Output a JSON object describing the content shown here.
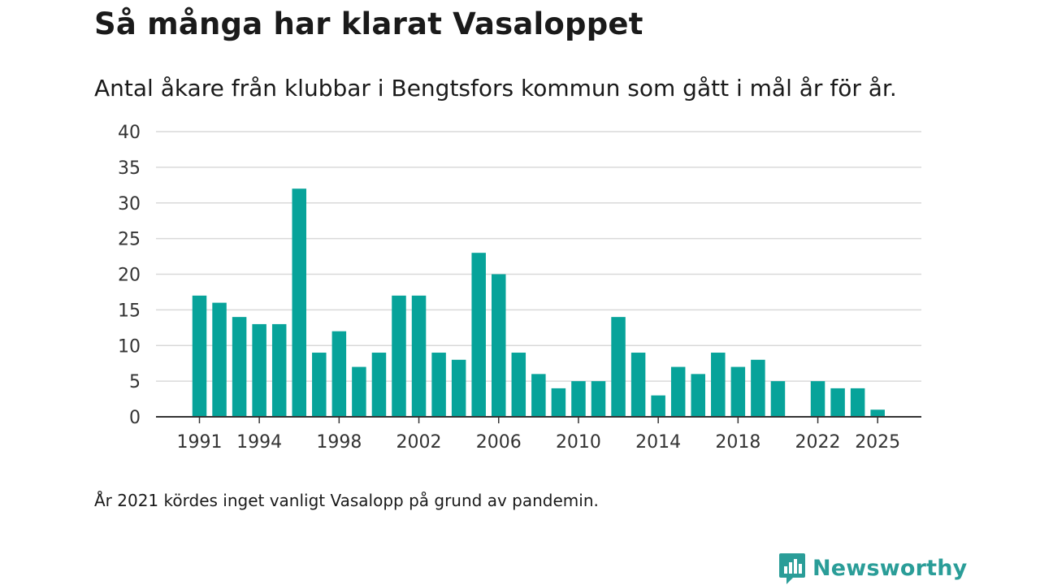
{
  "title": "Så många har klarat Vasaloppet",
  "subtitle": "Antal åkare från klubbar i Bengtsfors kommun som gått i mål år för år.",
  "note": "År 2021 kördes inget vanligt Vasalopp på grund av pandemin.",
  "brand": {
    "name": "Newsworthy",
    "icon": "newsworthy-logo-icon"
  },
  "colors": {
    "bar": "#07a39a",
    "grid": "#d9d9d9",
    "axis": "#333333",
    "brand": "#2a9d98"
  },
  "chart_data": {
    "type": "bar",
    "title": "Så många har klarat Vasaloppet",
    "xlabel": "",
    "ylabel": "",
    "ylim": [
      0,
      40
    ],
    "yticks": [
      0,
      5,
      10,
      15,
      20,
      25,
      30,
      35,
      40
    ],
    "xticks": [
      1991,
      1994,
      1998,
      2002,
      2006,
      2010,
      2014,
      2018,
      2022,
      2025
    ],
    "categories": [
      1991,
      1992,
      1993,
      1994,
      1995,
      1996,
      1997,
      1998,
      1999,
      2000,
      2001,
      2002,
      2003,
      2004,
      2005,
      2006,
      2007,
      2008,
      2009,
      2010,
      2011,
      2012,
      2013,
      2014,
      2015,
      2016,
      2017,
      2018,
      2019,
      2020,
      2021,
      2022,
      2023,
      2024,
      2025
    ],
    "values": [
      17,
      16,
      14,
      13,
      13,
      32,
      9,
      12,
      7,
      9,
      17,
      17,
      9,
      8,
      23,
      20,
      9,
      6,
      4,
      5,
      5,
      14,
      9,
      3,
      7,
      6,
      9,
      7,
      8,
      5,
      null,
      5,
      4,
      4,
      1
    ],
    "grid": true
  }
}
